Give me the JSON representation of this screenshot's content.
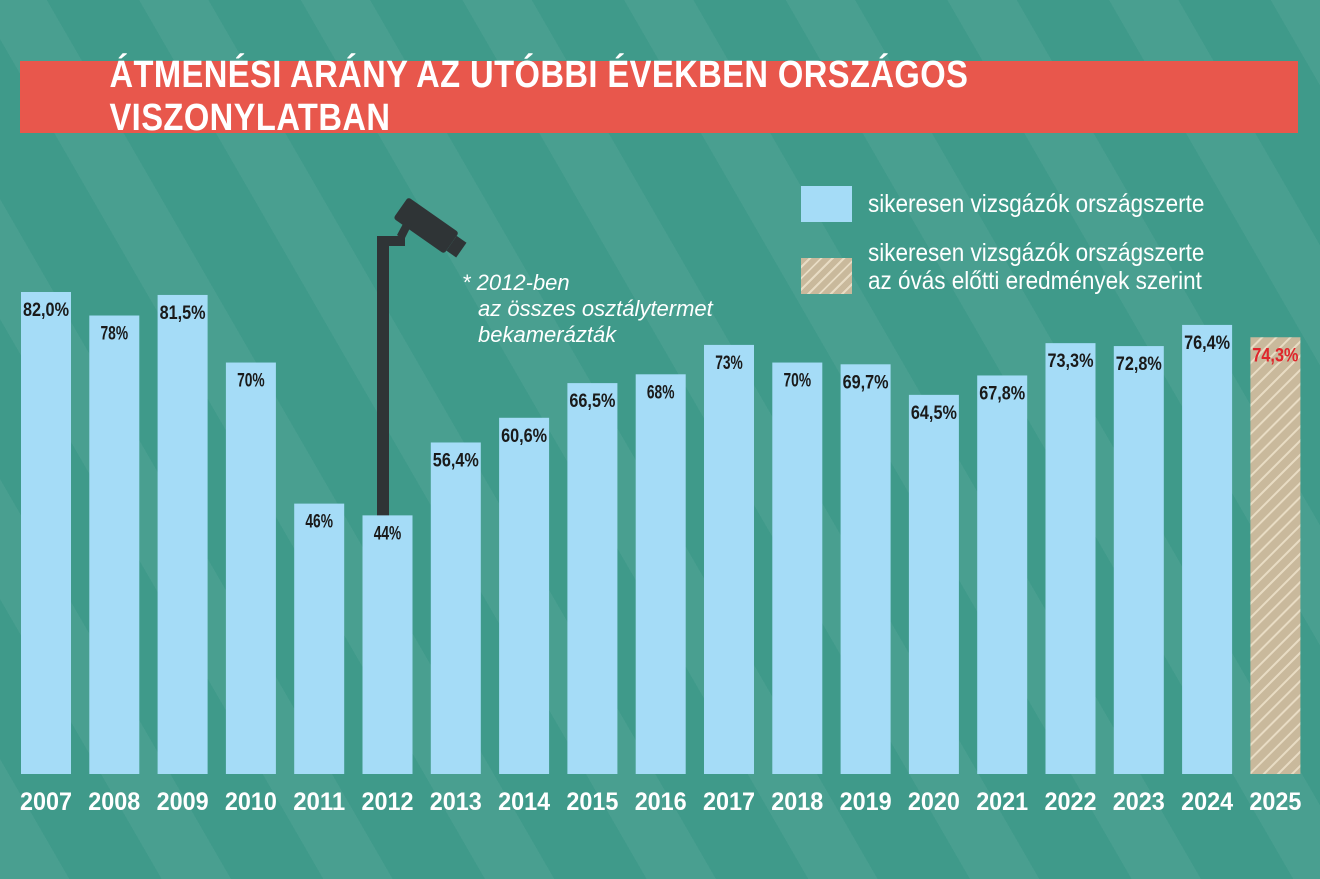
{
  "chart_data": {
    "type": "bar",
    "title": "ÁTMENÉSI ARÁNY AZ UTÓBBI ÉVEKBEN ORSZÁGOS VISZONYLATBAN",
    "categories": [
      "2007",
      "2008",
      "2009",
      "2010",
      "2011",
      "2012",
      "2013",
      "2014",
      "2015",
      "2016",
      "2017",
      "2018",
      "2019",
      "2020",
      "2021",
      "2022",
      "2023",
      "2024",
      "2025"
    ],
    "values": [
      82.0,
      78,
      81.5,
      70,
      46,
      44,
      56.4,
      60.6,
      66.5,
      68,
      73,
      70,
      69.7,
      64.5,
      67.8,
      73.3,
      72.8,
      76.4,
      74.3
    ],
    "value_labels": [
      "82,0%",
      "78%",
      "81,5%",
      "70%",
      "46%",
      "44%",
      "56,4%",
      "60,6%",
      "66,5%",
      "68%",
      "73%",
      "70%",
      "69,7%",
      "64,5%",
      "67,8%",
      "73,3%",
      "72,8%",
      "76,4%",
      "74,3%"
    ],
    "series_type": [
      "solid",
      "solid",
      "solid",
      "solid",
      "solid",
      "solid",
      "solid",
      "solid",
      "solid",
      "solid",
      "solid",
      "solid",
      "solid",
      "solid",
      "solid",
      "solid",
      "solid",
      "solid",
      "hatched"
    ],
    "legend": [
      {
        "label": "sikeresen vizsgázók országszerte",
        "style": "solid"
      },
      {
        "label": "sikeresen vizsgázók országszerte az óvás előtti eredmények szerint",
        "line1": "sikeresen vizsgázók országszerte",
        "line2": "az óvás előtti eredmények szerint",
        "style": "hatched"
      }
    ],
    "legend_position": "top-right",
    "annotation": {
      "category": "2012",
      "lines": [
        "* 2012-ben",
        "az összes osztálytermet",
        "bekamerázták"
      ],
      "icon": "security-camera-icon"
    },
    "ylim": [
      0,
      100
    ],
    "grid": false,
    "colors": {
      "bar": "#a5dcf7",
      "hatch_base": "#c9b99c",
      "hatch_line": "#e8dcc4",
      "label": "#1a1a1a",
      "highlight_label": "#e0252b",
      "title_bg": "#e8574c",
      "background": "#3f9a8a",
      "camera": "#2f3436"
    }
  }
}
